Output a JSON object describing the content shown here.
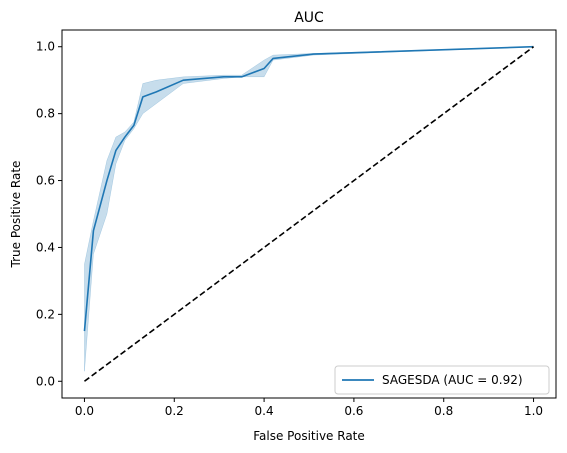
{
  "chart_data": {
    "type": "line",
    "title": "AUC",
    "xlabel": "False Positive Rate",
    "ylabel": "True Positive Rate",
    "xlim": [
      -0.05,
      1.05
    ],
    "ylim": [
      -0.05,
      1.05
    ],
    "xticks": [
      0.0,
      0.2,
      0.4,
      0.6,
      0.8,
      1.0
    ],
    "yticks": [
      0.0,
      0.2,
      0.4,
      0.6,
      0.8,
      1.0
    ],
    "xtick_labels": [
      "0.0",
      "0.2",
      "0.4",
      "0.6",
      "0.8",
      "1.0"
    ],
    "ytick_labels": [
      "0.0",
      "0.2",
      "0.4",
      "0.6",
      "0.8",
      "1.0"
    ],
    "grid": false,
    "legend_position": "lower-right",
    "series": [
      {
        "name": "SAGESDA (AUC = 0.92)",
        "color": "#1f77b4",
        "style": "solid",
        "x": [
          0.0,
          0.02,
          0.05,
          0.07,
          0.09,
          0.11,
          0.13,
          0.16,
          0.22,
          0.31,
          0.35,
          0.4,
          0.42,
          0.51,
          1.0
        ],
        "y": [
          0.15,
          0.45,
          0.6,
          0.69,
          0.73,
          0.765,
          0.85,
          0.865,
          0.9,
          0.91,
          0.91,
          0.935,
          0.965,
          0.978,
          1.0
        ],
        "band_lower": [
          0.03,
          0.38,
          0.5,
          0.65,
          0.72,
          0.755,
          0.8,
          0.83,
          0.89,
          0.905,
          0.91,
          0.91,
          0.96,
          0.975,
          1.0
        ],
        "band_upper": [
          0.35,
          0.48,
          0.66,
          0.73,
          0.745,
          0.775,
          0.89,
          0.9,
          0.91,
          0.915,
          0.915,
          0.96,
          0.975,
          0.98,
          1.0
        ]
      },
      {
        "name": "",
        "color": "#000000",
        "style": "dashed",
        "x": [
          0.0,
          1.0
        ],
        "y": [
          0.0,
          1.0
        ]
      }
    ],
    "band_color": "#1f77b4",
    "band_opacity": 0.25
  }
}
